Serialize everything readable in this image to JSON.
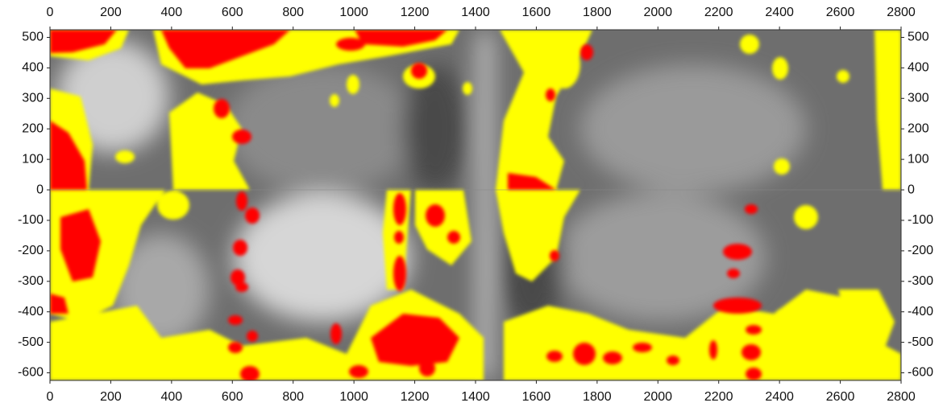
{
  "map": {
    "xlim": [
      0,
      2800
    ],
    "ylim": [
      -625,
      525
    ],
    "xticks": [
      0,
      200,
      400,
      600,
      800,
      1000,
      1200,
      1400,
      1600,
      1800,
      2000,
      2200,
      2400,
      2600,
      2800
    ],
    "yticks": [
      500,
      400,
      300,
      200,
      100,
      0,
      -100,
      -200,
      -300,
      -400,
      -500,
      -600
    ]
  }
}
